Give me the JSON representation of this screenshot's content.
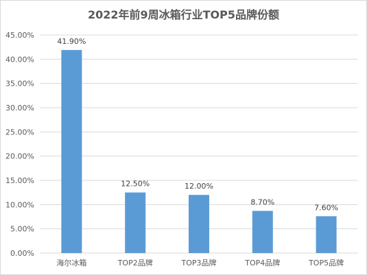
{
  "chart_data": {
    "type": "bar",
    "title": "2022年前9周冰箱行业TOP5品牌份额",
    "categories": [
      "海尔冰箱",
      "TOP2品牌",
      "TOP3品牌",
      "TOP4品牌",
      "TOP5品牌"
    ],
    "values": [
      41.9,
      12.5,
      12.0,
      8.7,
      7.6
    ],
    "data_labels": [
      "41.90%",
      "12.50%",
      "12.00%",
      "8.70%",
      "7.60%"
    ],
    "y_ticks": [
      "0.00%",
      "5.00%",
      "10.00%",
      "15.00%",
      "20.00%",
      "25.00%",
      "30.00%",
      "35.00%",
      "40.00%",
      "45.00%"
    ],
    "ylim": [
      0,
      45
    ],
    "grid": true,
    "legend": "none",
    "bar_color": "#5b9bd5",
    "grid_color": "#d9d9d9"
  }
}
